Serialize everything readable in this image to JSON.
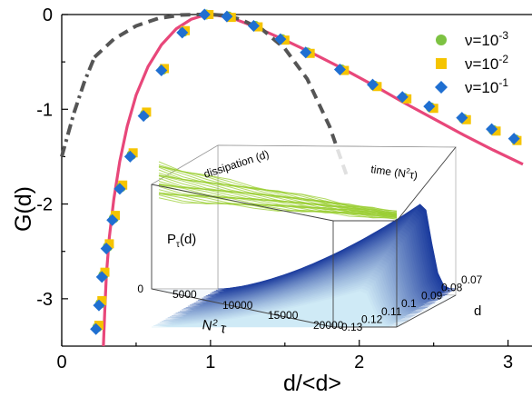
{
  "chart_data": [
    {
      "type": "scatter",
      "xlabel": "d/<d>",
      "ylabel": "G(d)",
      "xlim": [
        0,
        3.1
      ],
      "ylim": [
        -3.5,
        0
      ],
      "x_ticks": [
        "0",
        "1",
        "2",
        "3"
      ],
      "y_ticks": [
        "0",
        "-1",
        "-2",
        "-3"
      ],
      "legend_position": "top-right",
      "series": [
        {
          "name": "ν=10⁻³",
          "marker": "circle",
          "color": "#7dc242",
          "x": [
            0.24,
            0.26,
            0.28,
            0.31,
            0.35,
            0.4,
            0.47,
            0.56,
            0.68,
            0.82,
            0.97,
            1.12,
            1.3,
            1.48,
            1.65,
            1.88,
            2.1,
            2.3,
            2.48,
            2.7,
            2.9,
            3.05
          ],
          "y": [
            -3.3,
            -3.05,
            -2.75,
            -2.45,
            -2.15,
            -1.82,
            -1.48,
            -1.05,
            -0.58,
            -0.18,
            0.0,
            -0.02,
            -0.12,
            -0.26,
            -0.4,
            -0.58,
            -0.75,
            -0.88,
            -0.98,
            -1.1,
            -1.22,
            -1.32
          ]
        },
        {
          "name": "ν=10⁻²",
          "marker": "square",
          "color": "#f5c400",
          "x": [
            0.25,
            0.27,
            0.29,
            0.32,
            0.36,
            0.41,
            0.48,
            0.57,
            0.69,
            0.83,
            0.99,
            1.14,
            1.32,
            1.5,
            1.67,
            1.9,
            2.12,
            2.32,
            2.5,
            2.72,
            2.92,
            3.06
          ],
          "y": [
            -3.28,
            -3.02,
            -2.72,
            -2.42,
            -2.12,
            -1.8,
            -1.46,
            -1.03,
            -0.57,
            -0.17,
            0.0,
            -0.03,
            -0.13,
            -0.27,
            -0.41,
            -0.59,
            -0.76,
            -0.89,
            -0.99,
            -1.11,
            -1.23,
            -1.33
          ]
        },
        {
          "name": "ν=10⁻¹",
          "marker": "diamond",
          "color": "#1f6fd1",
          "x": [
            0.23,
            0.25,
            0.27,
            0.3,
            0.34,
            0.39,
            0.46,
            0.55,
            0.67,
            0.81,
            0.96,
            1.11,
            1.29,
            1.47,
            1.64,
            1.87,
            2.09,
            2.29,
            2.47,
            2.69,
            2.89,
            3.04
          ],
          "y": [
            -3.32,
            -3.07,
            -2.77,
            -2.47,
            -2.17,
            -1.84,
            -1.5,
            -1.07,
            -0.59,
            -0.19,
            0.0,
            -0.02,
            -0.12,
            -0.26,
            -0.4,
            -0.58,
            -0.74,
            -0.87,
            -0.97,
            -1.09,
            -1.21,
            -1.31
          ]
        }
      ],
      "curves": [
        {
          "style": "solid",
          "color": "#e8477a",
          "x": [
            0.28,
            0.29,
            0.3,
            0.32,
            0.35,
            0.39,
            0.44,
            0.5,
            0.58,
            0.67,
            0.77,
            0.87,
            0.95,
            1.0,
            1.05,
            1.15,
            1.3,
            1.5,
            1.7,
            1.9,
            2.1,
            2.3,
            2.5,
            2.7,
            2.9,
            3.1
          ],
          "y": [
            -3.5,
            -3.1,
            -2.75,
            -2.35,
            -1.95,
            -1.55,
            -1.18,
            -0.85,
            -0.55,
            -0.32,
            -0.15,
            -0.05,
            -0.01,
            0.0,
            -0.01,
            -0.04,
            -0.13,
            -0.27,
            -0.42,
            -0.58,
            -0.75,
            -0.93,
            -1.1,
            -1.27,
            -1.43,
            -1.58
          ]
        },
        {
          "style": "dash-dot",
          "color": "#555555",
          "x": [
            0.0,
            0.08,
            0.15,
            0.22
          ],
          "y": [
            -1.5,
            -1.05,
            -0.72,
            -0.45
          ]
        },
        {
          "style": "dashed",
          "color": "#555555",
          "x": [
            0.22,
            0.35,
            0.5,
            0.65,
            0.8,
            0.9,
            1.0,
            1.1,
            1.2,
            1.35,
            1.5,
            1.65,
            1.8,
            1.92
          ],
          "y": [
            -0.45,
            -0.26,
            -0.12,
            -0.04,
            -0.005,
            0.0,
            0.0,
            -0.01,
            -0.05,
            -0.16,
            -0.36,
            -0.68,
            -1.18,
            -1.72
          ]
        }
      ]
    },
    {
      "type": "surface",
      "ylabel": "P",
      "ylabel_sub": "τ",
      "ylabel_suffix": "(d)",
      "x_axis_label": "N",
      "x_axis_sup": "2",
      "x_axis_suffix": " τ",
      "x_ticks": [
        "5000",
        "10000",
        "15000",
        "20000"
      ],
      "d_axis_label": "d",
      "d_ticks": [
        "0.07",
        "0.08",
        "0.09",
        "0.1",
        "0.11",
        "0.12",
        "0.13"
      ],
      "z_ticks": [
        "0"
      ],
      "top_face_labels": {
        "left": "dissipation (d)",
        "right_prefix": "time (N",
        "right_sup": "2",
        "right_suffix": "τ)"
      },
      "colors": {
        "surface_dark": "#1c3c9e",
        "surface_light": "#cfeaf6",
        "traces": "#9acd32"
      }
    }
  ]
}
